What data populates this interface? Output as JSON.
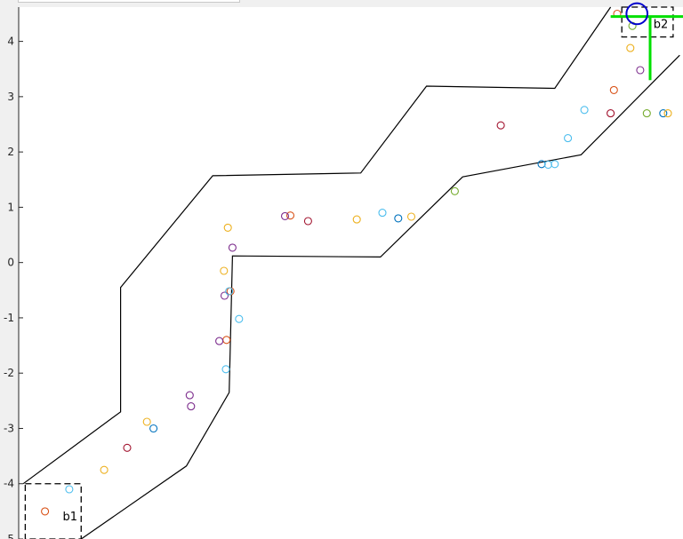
{
  "chart_data": {
    "type": "scatter",
    "title": "",
    "xlabel": "",
    "ylabel": "",
    "xlim": [
      -4.55,
      5.55
    ],
    "ylim": [
      -5.0,
      4.62
    ],
    "yticks": [
      4,
      3,
      2,
      1,
      0,
      -1,
      -2,
      -3,
      -4,
      -5
    ],
    "ytick_labels": [
      "4",
      "3",
      "2",
      "1",
      "0",
      "-1",
      "-2",
      "-3",
      "-4",
      "-5"
    ],
    "grid": false,
    "legend": "none",
    "colors": {
      "figure_bg": "#f0f0f0",
      "axes_bg": "#ffffff",
      "axis": "#262626",
      "boundary": "#000000",
      "crosshair": "#00e000",
      "target": "#0000cc"
    },
    "boundary": {
      "outer": [
        [
          -4.48,
          -4.0
        ],
        [
          -3.0,
          -2.7
        ],
        [
          -3.0,
          -0.45
        ],
        [
          -1.6,
          1.57
        ],
        [
          0.65,
          1.62
        ],
        [
          1.65,
          3.19
        ],
        [
          3.6,
          3.15
        ],
        [
          4.45,
          4.62
        ]
      ],
      "inner": [
        [
          -3.6,
          -5.0
        ],
        [
          -2.0,
          -3.68
        ],
        [
          -1.35,
          -2.35
        ],
        [
          -1.3,
          0.12
        ],
        [
          0.95,
          0.1
        ],
        [
          2.2,
          1.55
        ],
        [
          4.0,
          1.95
        ],
        [
          5.5,
          3.75
        ]
      ]
    },
    "boxes": [
      {
        "label": "b1",
        "x": [
          -4.45,
          -3.6
        ],
        "y": [
          -5.0,
          -4.0
        ]
      },
      {
        "label": "b2",
        "x": [
          4.62,
          5.4
        ],
        "y": [
          4.08,
          4.62
        ]
      }
    ],
    "crosshair": {
      "h_y": 4.45,
      "h_x": [
        4.45,
        5.55
      ],
      "v_x": 5.05,
      "v_y": [
        3.3,
        4.45
      ]
    },
    "target": {
      "x": 4.85,
      "y": 4.5,
      "r": 0.16
    },
    "series": [
      {
        "color": "#0072bd",
        "points": [
          [
            -2.5,
            -3.0
          ],
          [
            1.22,
            0.8
          ],
          [
            3.4,
            1.78
          ],
          [
            5.25,
            2.7
          ]
        ]
      },
      {
        "color": "#d95319",
        "points": [
          [
            -4.15,
            -4.5
          ],
          [
            -1.39,
            -1.4
          ],
          [
            -1.33,
            -0.52
          ],
          [
            -0.42,
            0.85
          ],
          [
            4.5,
            3.12
          ],
          [
            4.55,
            4.5
          ]
        ]
      },
      {
        "color": "#edb120",
        "points": [
          [
            -3.25,
            -3.75
          ],
          [
            -2.6,
            -2.88
          ],
          [
            -1.43,
            -0.15
          ],
          [
            -1.37,
            0.63
          ],
          [
            0.59,
            0.78
          ],
          [
            1.42,
            0.83
          ],
          [
            5.32,
            2.7
          ],
          [
            4.75,
            3.88
          ]
        ]
      },
      {
        "color": "#7e2f8e",
        "points": [
          [
            -1.95,
            -2.4
          ],
          [
            -1.93,
            -2.6
          ],
          [
            -1.5,
            -1.42
          ],
          [
            -1.42,
            -0.6
          ],
          [
            -1.3,
            0.27
          ],
          [
            -0.5,
            0.84
          ],
          [
            4.9,
            3.48
          ]
        ]
      },
      {
        "color": "#77ac30",
        "points": [
          [
            2.08,
            1.29
          ],
          [
            5.0,
            2.7
          ],
          [
            4.78,
            4.28
          ]
        ]
      },
      {
        "color": "#4dbeee",
        "points": [
          [
            -3.78,
            -4.1
          ],
          [
            -1.4,
            -1.93
          ],
          [
            -1.35,
            -0.52
          ],
          [
            -1.2,
            -1.02
          ],
          [
            0.98,
            0.9
          ],
          [
            3.5,
            1.77
          ],
          [
            3.6,
            1.78
          ],
          [
            3.8,
            2.25
          ],
          [
            4.05,
            2.76
          ]
        ]
      },
      {
        "color": "#a2142f",
        "points": [
          [
            -2.9,
            -3.35
          ],
          [
            -0.15,
            0.75
          ],
          [
            2.78,
            2.48
          ],
          [
            4.45,
            2.7
          ]
        ]
      }
    ],
    "annotations": [
      {
        "text": "b1",
        "x": -3.88,
        "y": -4.58
      },
      {
        "text": "b2",
        "x": 5.1,
        "y": 4.32
      }
    ]
  }
}
